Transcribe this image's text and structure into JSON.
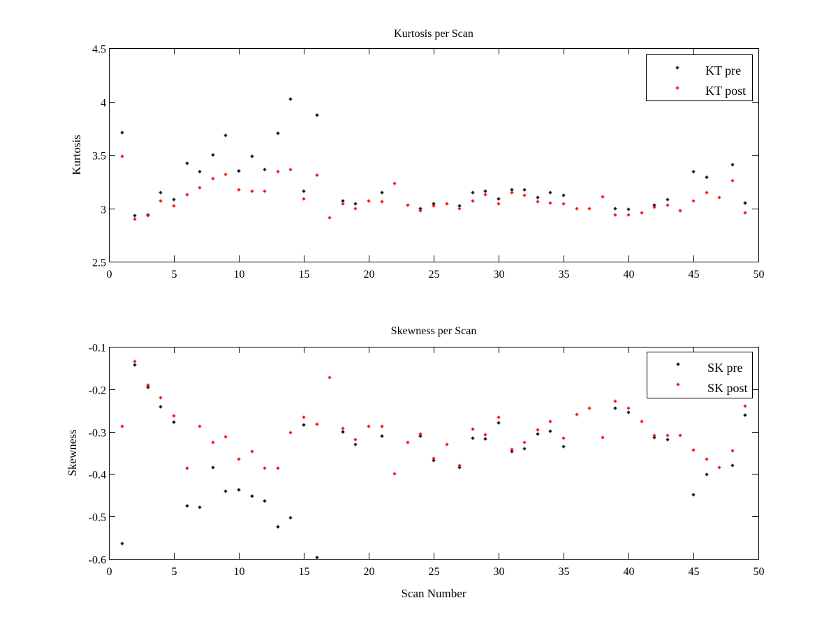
{
  "chart_data": [
    {
      "type": "scatter",
      "title": "Kurtosis per Scan",
      "xlabel": "",
      "ylabel": "Kurtosis",
      "xlim": [
        0,
        50
      ],
      "ylim": [
        2.5,
        4.5
      ],
      "xticks": [
        0,
        5,
        10,
        15,
        20,
        25,
        30,
        35,
        40,
        45,
        50
      ],
      "xtick_labels": [
        "0",
        "5",
        "10",
        "15",
        "20",
        "25",
        "30",
        "35",
        "40",
        "45",
        "50"
      ],
      "yticks": [
        2.5,
        3,
        3.5,
        4,
        4.5
      ],
      "ytick_labels": [
        "2.5",
        "3",
        "3.5",
        "4",
        "4.5"
      ],
      "grid": false,
      "legend_position": "top-right",
      "series": [
        {
          "name": "KT pre",
          "color": "#000000",
          "x": [
            1,
            2,
            3,
            4,
            5,
            6,
            7,
            8,
            9,
            10,
            11,
            12,
            13,
            14,
            15,
            16,
            18,
            19,
            21,
            24,
            25,
            27,
            28,
            29,
            30,
            31,
            32,
            33,
            34,
            35,
            39,
            40,
            42,
            43,
            45,
            46,
            48,
            49
          ],
          "y": [
            3.71,
            2.93,
            2.94,
            3.15,
            3.08,
            3.42,
            3.34,
            3.5,
            3.68,
            3.35,
            3.49,
            3.36,
            3.7,
            4.02,
            3.16,
            3.87,
            3.07,
            3.04,
            3.15,
            3.0,
            3.04,
            3.02,
            3.15,
            3.16,
            3.09,
            3.17,
            3.17,
            3.1,
            3.15,
            3.12,
            3.0,
            2.99,
            3.03,
            3.08,
            3.34,
            3.29,
            3.41,
            3.05
          ]
        },
        {
          "name": "KT post",
          "color": "#ff0000",
          "x": [
            1,
            2,
            3,
            4,
            5,
            6,
            7,
            8,
            9,
            10,
            11,
            12,
            13,
            14,
            15,
            16,
            17,
            18,
            19,
            20,
            21,
            22,
            23,
            24,
            25,
            26,
            27,
            28,
            29,
            30,
            31,
            32,
            33,
            34,
            35,
            36,
            37,
            38,
            39,
            40,
            41,
            42,
            43,
            44,
            45,
            46,
            47,
            48,
            49
          ],
          "y": [
            3.49,
            2.9,
            2.93,
            3.07,
            3.02,
            3.13,
            3.19,
            3.28,
            3.32,
            3.17,
            3.16,
            3.16,
            3.34,
            3.36,
            3.09,
            3.31,
            2.91,
            3.04,
            3.0,
            3.07,
            3.06,
            3.23,
            3.03,
            2.98,
            3.02,
            3.04,
            3.0,
            3.07,
            3.13,
            3.04,
            3.15,
            3.12,
            3.06,
            3.05,
            3.04,
            3.0,
            3.0,
            3.11,
            2.94,
            2.94,
            2.96,
            3.01,
            3.03,
            2.98,
            3.07,
            3.15,
            3.1,
            3.26,
            2.96
          ]
        }
      ]
    },
    {
      "type": "scatter",
      "title": "Skewness per Scan",
      "xlabel": "Scan Number",
      "ylabel": "Skewness",
      "xlim": [
        0,
        50
      ],
      "ylim": [
        -0.6,
        -0.1
      ],
      "xticks": [
        0,
        5,
        10,
        15,
        20,
        25,
        30,
        35,
        40,
        45,
        50
      ],
      "xtick_labels": [
        "0",
        "5",
        "10",
        "15",
        "20",
        "25",
        "30",
        "35",
        "40",
        "45",
        "50"
      ],
      "yticks": [
        -0.6,
        -0.5,
        -0.4,
        -0.3,
        -0.2,
        -0.1
      ],
      "ytick_labels": [
        "-0.6",
        "-0.5",
        "-0.4",
        "-0.3",
        "-0.2",
        "-0.1"
      ],
      "grid": false,
      "legend_position": "top-right",
      "series": [
        {
          "name": "SK pre",
          "color": "#000000",
          "x": [
            1,
            2,
            3,
            4,
            5,
            6,
            7,
            8,
            9,
            10,
            11,
            12,
            13,
            14,
            15,
            16,
            18,
            19,
            21,
            24,
            25,
            27,
            28,
            29,
            30,
            31,
            32,
            33,
            34,
            35,
            39,
            40,
            42,
            43,
            45,
            46,
            48,
            49
          ],
          "y": [
            -0.564,
            -0.143,
            -0.195,
            -0.241,
            -0.278,
            -0.475,
            -0.478,
            -0.385,
            -0.44,
            -0.437,
            -0.452,
            -0.463,
            -0.524,
            -0.503,
            -0.284,
            -0.597,
            -0.301,
            -0.33,
            -0.311,
            -0.311,
            -0.368,
            -0.385,
            -0.315,
            -0.317,
            -0.279,
            -0.347,
            -0.34,
            -0.306,
            -0.299,
            -0.335,
            -0.245,
            -0.255,
            -0.314,
            -0.319,
            -0.449,
            -0.401,
            -0.38,
            -0.261
          ]
        },
        {
          "name": "SK post",
          "color": "#ff0000",
          "x": [
            1,
            2,
            3,
            4,
            5,
            6,
            7,
            8,
            9,
            10,
            11,
            12,
            13,
            14,
            15,
            16,
            17,
            18,
            19,
            20,
            21,
            22,
            23,
            24,
            25,
            26,
            27,
            28,
            29,
            30,
            31,
            32,
            33,
            34,
            35,
            36,
            37,
            38,
            39,
            40,
            41,
            42,
            43,
            44,
            45,
            46,
            47,
            48,
            49
          ],
          "y": [
            -0.288,
            -0.135,
            -0.19,
            -0.22,
            -0.263,
            -0.386,
            -0.288,
            -0.325,
            -0.312,
            -0.365,
            -0.347,
            -0.386,
            -0.386,
            -0.302,
            -0.266,
            -0.283,
            -0.172,
            -0.292,
            -0.319,
            -0.288,
            -0.288,
            -0.399,
            -0.325,
            -0.306,
            -0.363,
            -0.33,
            -0.38,
            -0.294,
            -0.307,
            -0.266,
            -0.342,
            -0.325,
            -0.296,
            -0.276,
            -0.315,
            -0.26,
            -0.245,
            -0.314,
            -0.228,
            -0.245,
            -0.276,
            -0.309,
            -0.309,
            -0.309,
            -0.343,
            -0.365,
            -0.385,
            -0.345,
            -0.24
          ]
        }
      ]
    }
  ]
}
